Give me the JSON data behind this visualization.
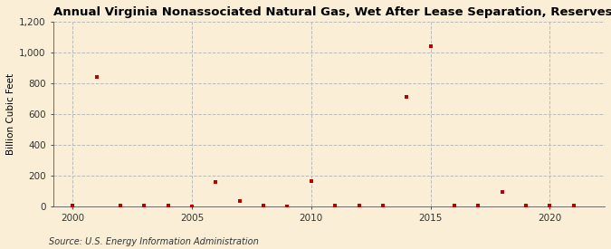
{
  "title": "Annual Virginia Nonassociated Natural Gas, Wet After Lease Separation, Reserves Acquisitions",
  "ylabel": "Billion Cubic Feet",
  "source": "Source: U.S. Energy Information Administration",
  "background_color": "#faefd6",
  "plot_bg_color": "#faefd6",
  "years": [
    2000,
    2001,
    2002,
    2003,
    2004,
    2005,
    2006,
    2007,
    2008,
    2009,
    2010,
    2011,
    2012,
    2013,
    2014,
    2015,
    2016,
    2017,
    2018,
    2019,
    2020,
    2021
  ],
  "values": [
    3,
    840,
    2,
    2,
    2,
    1,
    155,
    35,
    2,
    1,
    165,
    2,
    2,
    2,
    710,
    1040,
    2,
    2,
    90,
    2,
    2,
    2
  ],
  "marker_color": "#bb0000",
  "marker_size": 3.5,
  "xlim": [
    1999.2,
    2022.3
  ],
  "ylim": [
    0,
    1200
  ],
  "yticks": [
    0,
    200,
    400,
    600,
    800,
    1000,
    1200
  ],
  "ytick_labels": [
    "0",
    "200",
    "400",
    "600",
    "800",
    "1,000",
    "1,200"
  ],
  "xticks": [
    2000,
    2005,
    2010,
    2015,
    2020
  ],
  "vgrid_positions": [
    2000,
    2005,
    2010,
    2015,
    2020
  ],
  "grid_color": "#bbbbbb",
  "title_fontsize": 9.5,
  "label_fontsize": 7.5,
  "tick_fontsize": 7.5,
  "source_fontsize": 7.0
}
